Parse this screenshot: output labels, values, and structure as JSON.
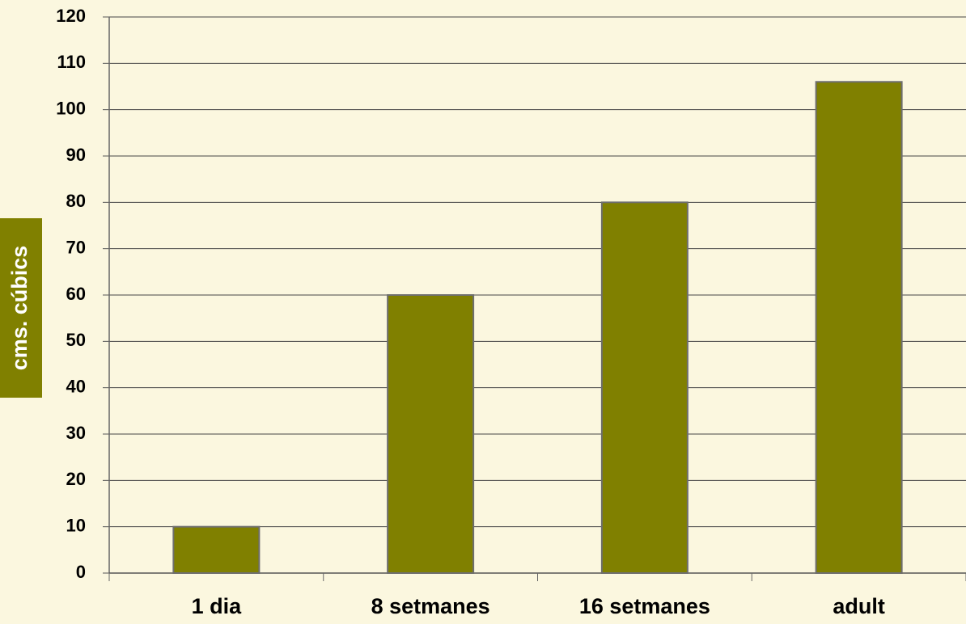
{
  "chart_data": {
    "type": "bar",
    "y_label": "cms. cúbics",
    "categories": [
      "1 dia",
      "8 setmanes",
      "16 setmanes",
      "adult"
    ],
    "values": [
      10,
      60,
      80,
      106
    ],
    "color": "#808000",
    "ylim": [
      0,
      120
    ],
    "yticks": [
      0,
      10,
      20,
      30,
      40,
      50,
      60,
      70,
      80,
      90,
      100,
      110,
      120
    ],
    "grid": true
  }
}
